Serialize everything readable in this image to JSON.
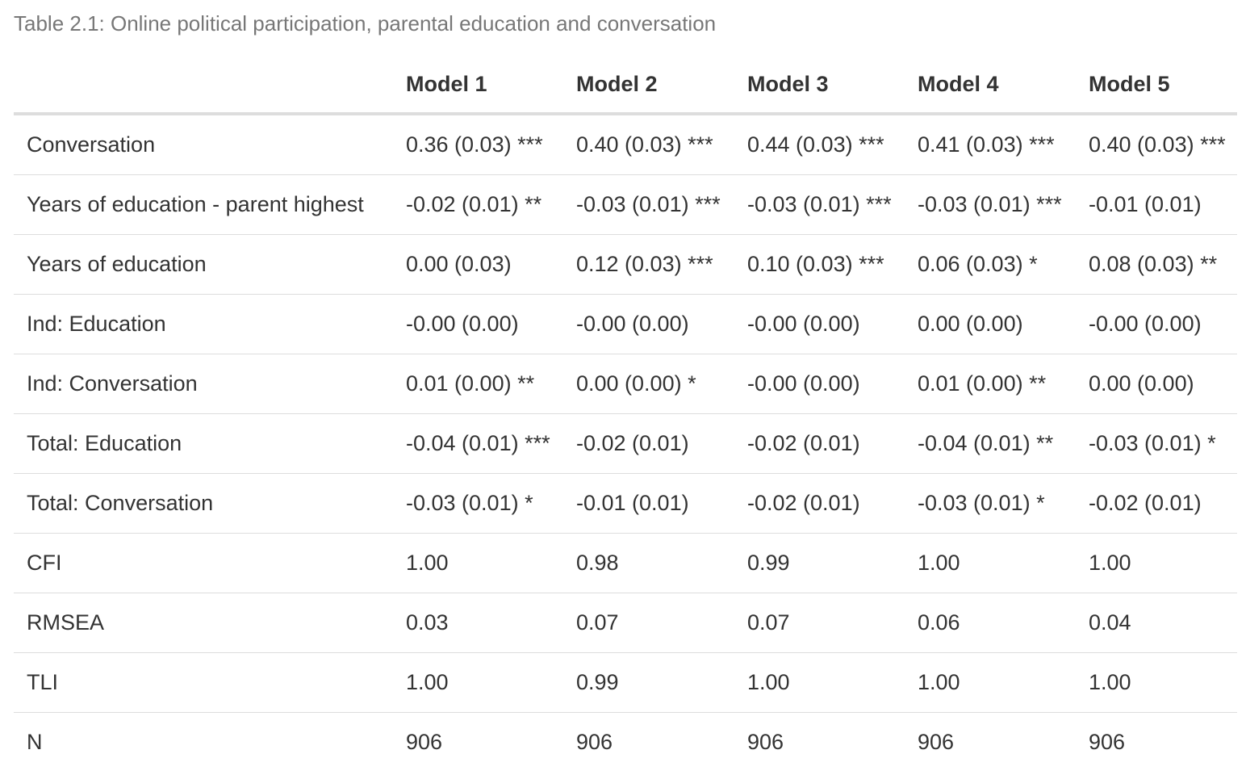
{
  "caption": "Table 2.1: Online political participation, parental education and conversation",
  "columns": [
    "",
    "Model 1",
    "Model 2",
    "Model 3",
    "Model 4",
    "Model 5"
  ],
  "rows": [
    {
      "label": "Conversation",
      "values": [
        "0.36 (0.03) ***",
        "0.40 (0.03) ***",
        "0.44 (0.03) ***",
        "0.41 (0.03) ***",
        "0.40 (0.03) ***"
      ]
    },
    {
      "label": "Years of education - parent highest",
      "values": [
        "-0.02 (0.01) **",
        "-0.03 (0.01) ***",
        "-0.03 (0.01) ***",
        "-0.03 (0.01) ***",
        "-0.01 (0.01)"
      ]
    },
    {
      "label": "Years of education",
      "values": [
        "0.00 (0.03)",
        "0.12 (0.03) ***",
        "0.10 (0.03) ***",
        "0.06 (0.03) *",
        "0.08 (0.03) **"
      ]
    },
    {
      "label": "Ind: Education",
      "values": [
        "-0.00 (0.00)",
        "-0.00 (0.00)",
        "-0.00 (0.00)",
        "0.00 (0.00)",
        "-0.00 (0.00)"
      ]
    },
    {
      "label": "Ind: Conversation",
      "values": [
        "0.01 (0.00) **",
        "0.00 (0.00) *",
        "-0.00 (0.00)",
        "0.01 (0.00) **",
        "0.00 (0.00)"
      ]
    },
    {
      "label": "Total: Education",
      "values": [
        "-0.04 (0.01) ***",
        "-0.02 (0.01)",
        "-0.02 (0.01)",
        "-0.04 (0.01) **",
        "-0.03 (0.01) *"
      ]
    },
    {
      "label": "Total: Conversation",
      "values": [
        "-0.03 (0.01) *",
        "-0.01 (0.01)",
        "-0.02 (0.01)",
        "-0.03 (0.01) *",
        "-0.02 (0.01)"
      ]
    },
    {
      "label": "CFI",
      "values": [
        "1.00",
        "0.98",
        "0.99",
        "1.00",
        "1.00"
      ]
    },
    {
      "label": "RMSEA",
      "values": [
        "0.03",
        "0.07",
        "0.07",
        "0.06",
        "0.04"
      ]
    },
    {
      "label": "TLI",
      "values": [
        "1.00",
        "0.99",
        "1.00",
        "1.00",
        "1.00"
      ]
    },
    {
      "label": "N",
      "values": [
        "906",
        "906",
        "906",
        "906",
        "906"
      ]
    }
  ]
}
